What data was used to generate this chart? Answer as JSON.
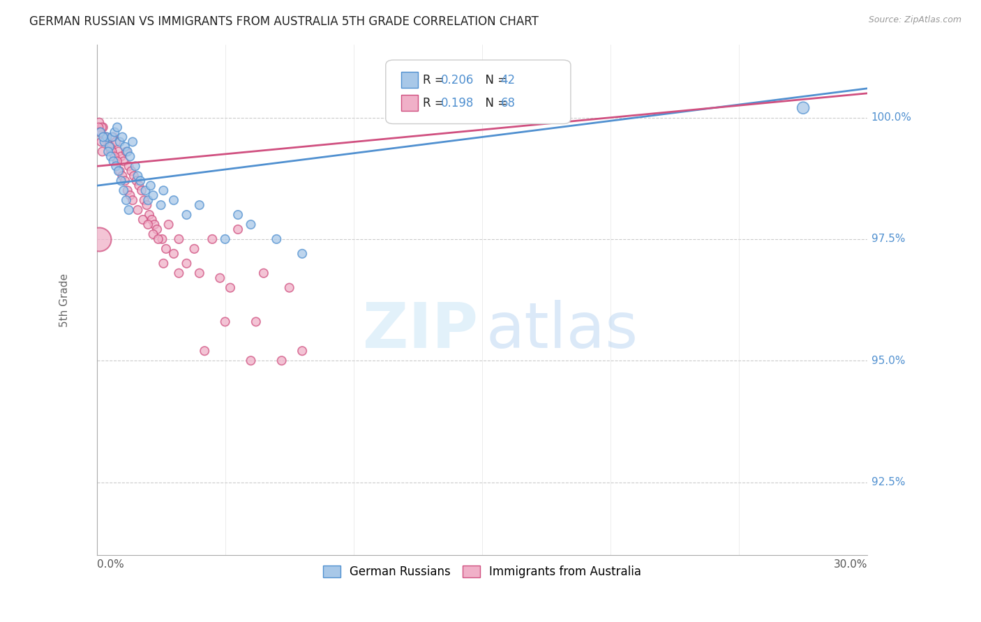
{
  "title": "GERMAN RUSSIAN VS IMMIGRANTS FROM AUSTRALIA 5TH GRADE CORRELATION CHART",
  "source_text": "Source: ZipAtlas.com",
  "ylabel": "5th Grade",
  "xmin": 0.0,
  "xmax": 30.0,
  "ymin": 91.0,
  "ymax": 101.5,
  "blue_color": "#a8c8e8",
  "pink_color": "#f0b0c8",
  "blue_edge_color": "#5090d0",
  "pink_edge_color": "#d05080",
  "blue_line_color": "#5090d0",
  "pink_line_color": "#d05080",
  "legend_blue_label": "German Russians",
  "legend_pink_label": "Immigrants from Australia",
  "ytick_positions": [
    92.5,
    95.0,
    97.5,
    100.0
  ],
  "ytick_labels": [
    "92.5%",
    "95.0%",
    "97.5%",
    "100.0%"
  ],
  "watermark_zip": "ZIP",
  "watermark_atlas": "atlas",
  "blue_trend_x": [
    0.0,
    30.0
  ],
  "blue_trend_y": [
    98.6,
    100.6
  ],
  "pink_trend_x": [
    0.0,
    30.0
  ],
  "pink_trend_y": [
    99.0,
    100.5
  ],
  "blue_x": [
    0.3,
    0.4,
    0.5,
    0.6,
    0.7,
    0.8,
    0.9,
    1.0,
    1.1,
    1.2,
    1.3,
    1.4,
    1.5,
    1.6,
    1.7,
    1.9,
    2.0,
    2.1,
    2.2,
    2.5,
    2.6,
    3.0,
    3.5,
    4.0,
    5.0,
    5.5,
    6.0,
    7.0,
    8.0,
    0.15,
    0.25,
    0.45,
    0.55,
    0.65,
    0.75,
    0.85,
    0.95,
    1.05,
    1.15,
    1.25,
    27.5
  ],
  "blue_y": [
    99.5,
    99.6,
    99.4,
    99.6,
    99.7,
    99.8,
    99.5,
    99.6,
    99.4,
    99.3,
    99.2,
    99.5,
    99.0,
    98.8,
    98.7,
    98.5,
    98.3,
    98.6,
    98.4,
    98.2,
    98.5,
    98.3,
    98.0,
    98.2,
    97.5,
    98.0,
    97.8,
    97.5,
    97.2,
    99.7,
    99.6,
    99.3,
    99.2,
    99.1,
    99.0,
    98.9,
    98.7,
    98.5,
    98.3,
    98.1,
    100.2
  ],
  "blue_sizes": [
    80,
    80,
    80,
    80,
    80,
    80,
    80,
    80,
    80,
    80,
    80,
    80,
    80,
    80,
    80,
    80,
    80,
    80,
    80,
    80,
    80,
    80,
    80,
    80,
    80,
    80,
    80,
    80,
    80,
    80,
    80,
    80,
    80,
    80,
    80,
    80,
    80,
    80,
    80,
    80,
    150
  ],
  "pink_x": [
    0.15,
    0.25,
    0.35,
    0.45,
    0.55,
    0.65,
    0.75,
    0.85,
    0.95,
    1.05,
    1.15,
    1.25,
    1.35,
    1.45,
    1.55,
    1.65,
    1.75,
    1.85,
    1.95,
    2.05,
    2.15,
    2.25,
    2.35,
    2.55,
    2.8,
    3.2,
    3.8,
    4.5,
    5.5,
    6.5,
    7.5,
    0.1,
    0.2,
    0.3,
    0.4,
    0.5,
    0.6,
    0.7,
    0.8,
    0.9,
    1.0,
    1.1,
    1.2,
    1.3,
    1.4,
    1.6,
    1.8,
    2.0,
    2.2,
    2.4,
    2.7,
    3.0,
    3.5,
    4.0,
    4.8,
    5.2,
    6.2,
    8.0,
    2.6,
    3.2,
    4.2,
    5.0,
    6.0,
    7.2,
    0.08,
    0.12,
    0.18,
    0.22
  ],
  "pink_y": [
    99.7,
    99.8,
    99.6,
    99.5,
    99.4,
    99.6,
    99.5,
    99.3,
    99.2,
    99.1,
    99.3,
    99.0,
    98.9,
    98.8,
    98.7,
    98.6,
    98.5,
    98.3,
    98.2,
    98.0,
    97.9,
    97.8,
    97.7,
    97.5,
    97.8,
    97.5,
    97.3,
    97.5,
    97.7,
    96.8,
    96.5,
    99.9,
    99.8,
    99.6,
    99.5,
    99.4,
    99.3,
    99.2,
    99.1,
    98.9,
    98.8,
    98.7,
    98.5,
    98.4,
    98.3,
    98.1,
    97.9,
    97.8,
    97.6,
    97.5,
    97.3,
    97.2,
    97.0,
    96.8,
    96.7,
    96.5,
    95.8,
    95.2,
    97.0,
    96.8,
    95.2,
    95.8,
    95.0,
    95.0,
    99.8,
    99.7,
    99.5,
    99.3
  ],
  "pink_sizes": [
    80,
    80,
    80,
    80,
    80,
    80,
    80,
    80,
    80,
    80,
    80,
    80,
    80,
    80,
    80,
    80,
    80,
    80,
    80,
    80,
    80,
    80,
    80,
    80,
    80,
    80,
    80,
    80,
    80,
    80,
    80,
    80,
    80,
    80,
    80,
    80,
    80,
    80,
    80,
    80,
    80,
    80,
    80,
    80,
    80,
    80,
    80,
    80,
    80,
    80,
    80,
    80,
    80,
    80,
    80,
    80,
    80,
    80,
    80,
    80,
    80,
    80,
    80,
    80,
    80,
    80,
    80,
    80
  ],
  "pink_large_x": [
    0.08
  ],
  "pink_large_y": [
    97.5
  ],
  "pink_large_size": [
    600
  ]
}
